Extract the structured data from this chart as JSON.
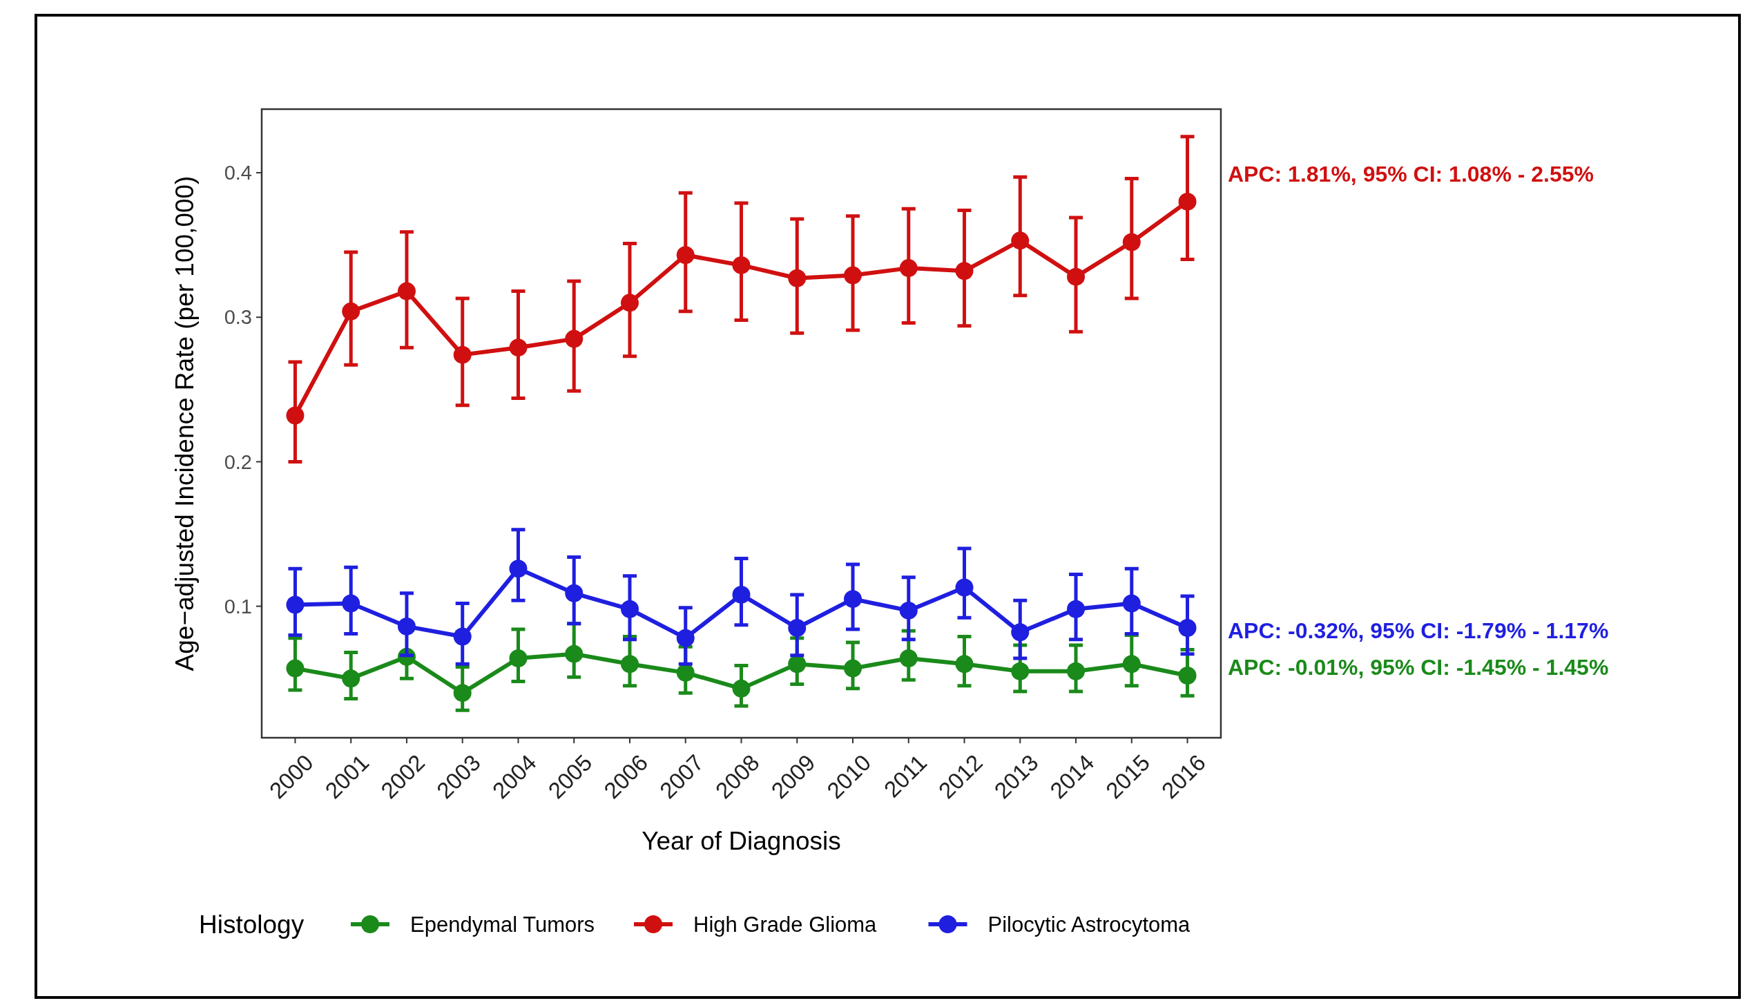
{
  "chart_data": {
    "type": "line",
    "xlabel": "Year of Diagnosis",
    "ylabel": "Age−adjusted Incidence Rate (per 100,000)",
    "legend_title": "Histology",
    "legend": "bottom",
    "grid": false,
    "marker": "circle",
    "line_style": "solid",
    "categories": [
      "2000",
      "2001",
      "2002",
      "2003",
      "2004",
      "2005",
      "2006",
      "2007",
      "2008",
      "2009",
      "2010",
      "2011",
      "2012",
      "2013",
      "2014",
      "2015",
      "2016"
    ],
    "ylim": [
      0.009,
      0.444
    ],
    "yticks": [
      0.1,
      0.2,
      0.3,
      0.4
    ],
    "series": [
      {
        "name": "Ependymal Tumors",
        "color": "#1a8a1a",
        "values": [
          0.057,
          0.05,
          0.065,
          0.04,
          0.064,
          0.067,
          0.06,
          0.054,
          0.043,
          0.06,
          0.057,
          0.064,
          0.06,
          0.055,
          0.055,
          0.06,
          0.052
        ],
        "errors": [
          [
            0.042,
            0.078
          ],
          [
            0.036,
            0.068
          ],
          [
            0.05,
            0.065
          ],
          [
            0.028,
            0.058
          ],
          [
            0.048,
            0.084
          ],
          [
            0.051,
            0.088
          ],
          [
            0.045,
            0.079
          ],
          [
            0.04,
            0.072
          ],
          [
            0.031,
            0.059
          ],
          [
            0.046,
            0.078
          ],
          [
            0.043,
            0.075
          ],
          [
            0.049,
            0.083
          ],
          [
            0.045,
            0.079
          ],
          [
            0.041,
            0.073
          ],
          [
            0.041,
            0.073
          ],
          [
            0.045,
            0.08
          ],
          [
            0.038,
            0.07
          ]
        ]
      },
      {
        "name": "High Grade Glioma",
        "color": "#d01010",
        "values": [
          0.232,
          0.304,
          0.318,
          0.274,
          0.279,
          0.285,
          0.31,
          0.343,
          0.336,
          0.327,
          0.329,
          0.334,
          0.332,
          0.353,
          0.328,
          0.352,
          0.38
        ],
        "errors": [
          [
            0.2,
            0.269
          ],
          [
            0.267,
            0.345
          ],
          [
            0.279,
            0.359
          ],
          [
            0.239,
            0.313
          ],
          [
            0.244,
            0.318
          ],
          [
            0.249,
            0.325
          ],
          [
            0.273,
            0.351
          ],
          [
            0.304,
            0.386
          ],
          [
            0.298,
            0.379
          ],
          [
            0.289,
            0.368
          ],
          [
            0.291,
            0.37
          ],
          [
            0.296,
            0.375
          ],
          [
            0.294,
            0.374
          ],
          [
            0.315,
            0.397
          ],
          [
            0.29,
            0.369
          ],
          [
            0.313,
            0.396
          ],
          [
            0.34,
            0.425
          ]
        ]
      },
      {
        "name": "Pilocytic Astrocytoma",
        "color": "#1f1fe0",
        "values": [
          0.101,
          0.102,
          0.086,
          0.079,
          0.126,
          0.109,
          0.098,
          0.078,
          0.108,
          0.085,
          0.105,
          0.097,
          0.113,
          0.082,
          0.098,
          0.102,
          0.085
        ],
        "errors": [
          [
            0.08,
            0.126
          ],
          [
            0.081,
            0.127
          ],
          [
            0.066,
            0.109
          ],
          [
            0.06,
            0.102
          ],
          [
            0.104,
            0.153
          ],
          [
            0.088,
            0.134
          ],
          [
            0.077,
            0.121
          ],
          [
            0.06,
            0.099
          ],
          [
            0.087,
            0.133
          ],
          [
            0.066,
            0.108
          ],
          [
            0.084,
            0.129
          ],
          [
            0.077,
            0.12
          ],
          [
            0.092,
            0.14
          ],
          [
            0.064,
            0.104
          ],
          [
            0.077,
            0.122
          ],
          [
            0.081,
            0.126
          ],
          [
            0.067,
            0.107
          ]
        ]
      }
    ],
    "annotations": [
      "APC: 1.81%, 95% CI: 1.08% - 2.55%",
      "APC: -0.32%, 95% CI: -1.79% - 1.17%",
      "APC: -0.01%, 95% CI: -1.45% - 1.45%"
    ]
  }
}
